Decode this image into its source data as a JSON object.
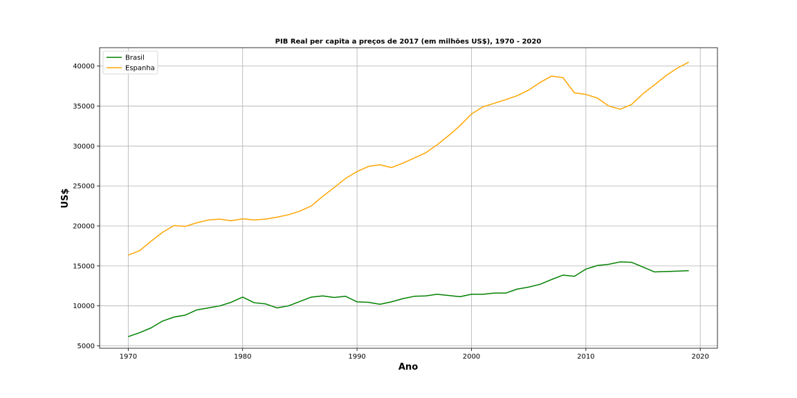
{
  "chart_data": {
    "type": "line",
    "title": "PIB Real per capita a preços de 2017 (em milhões US$), 1970 - 2020",
    "xlabel": "Ano",
    "ylabel": "US$",
    "xlim": [
      1967.5,
      2021.5
    ],
    "ylim": [
      4700,
      42300
    ],
    "xticks": [
      1970,
      1980,
      1990,
      2000,
      2010,
      2020
    ],
    "yticks": [
      5000,
      10000,
      15000,
      20000,
      25000,
      30000,
      35000,
      40000
    ],
    "grid": true,
    "legend_position": "top-left",
    "x": [
      1970,
      1971,
      1972,
      1973,
      1974,
      1975,
      1976,
      1977,
      1978,
      1979,
      1980,
      1981,
      1982,
      1983,
      1984,
      1985,
      1986,
      1987,
      1988,
      1989,
      1990,
      1991,
      1992,
      1993,
      1994,
      1995,
      1996,
      1997,
      1998,
      1999,
      2000,
      2001,
      2002,
      2003,
      2004,
      2005,
      2006,
      2007,
      2008,
      2009,
      2010,
      2011,
      2012,
      2013,
      2014,
      2015,
      2016,
      2017,
      2018,
      2019
    ],
    "series": [
      {
        "name": "Brasil",
        "color": "#008000",
        "values": [
          6150,
          6650,
          7250,
          8100,
          8600,
          8850,
          9500,
          9750,
          10000,
          10450,
          11100,
          10400,
          10250,
          9750,
          10000,
          10550,
          11100,
          11250,
          11050,
          11200,
          10500,
          10450,
          10200,
          10500,
          10900,
          11200,
          11250,
          11450,
          11300,
          11150,
          11450,
          11450,
          11600,
          11600,
          12100,
          12350,
          12700,
          13300,
          13850,
          13700,
          14600,
          15050,
          15200,
          15500,
          15450,
          14850,
          14250,
          14300,
          14350,
          14400
        ]
      },
      {
        "name": "Espanha",
        "color": "#FFA500",
        "values": [
          16350,
          16900,
          18100,
          19200,
          20050,
          19950,
          20400,
          20750,
          20850,
          20650,
          20900,
          20750,
          20850,
          21100,
          21400,
          21850,
          22500,
          23700,
          24800,
          25950,
          26800,
          27450,
          27650,
          27300,
          27850,
          28500,
          29150,
          30150,
          31300,
          32550,
          34000,
          34900,
          35350,
          35800,
          36300,
          37000,
          37950,
          38750,
          38550,
          36650,
          36450,
          36000,
          35000,
          34600,
          35200,
          36550,
          37650,
          38800,
          39750,
          40500
        ]
      }
    ]
  }
}
